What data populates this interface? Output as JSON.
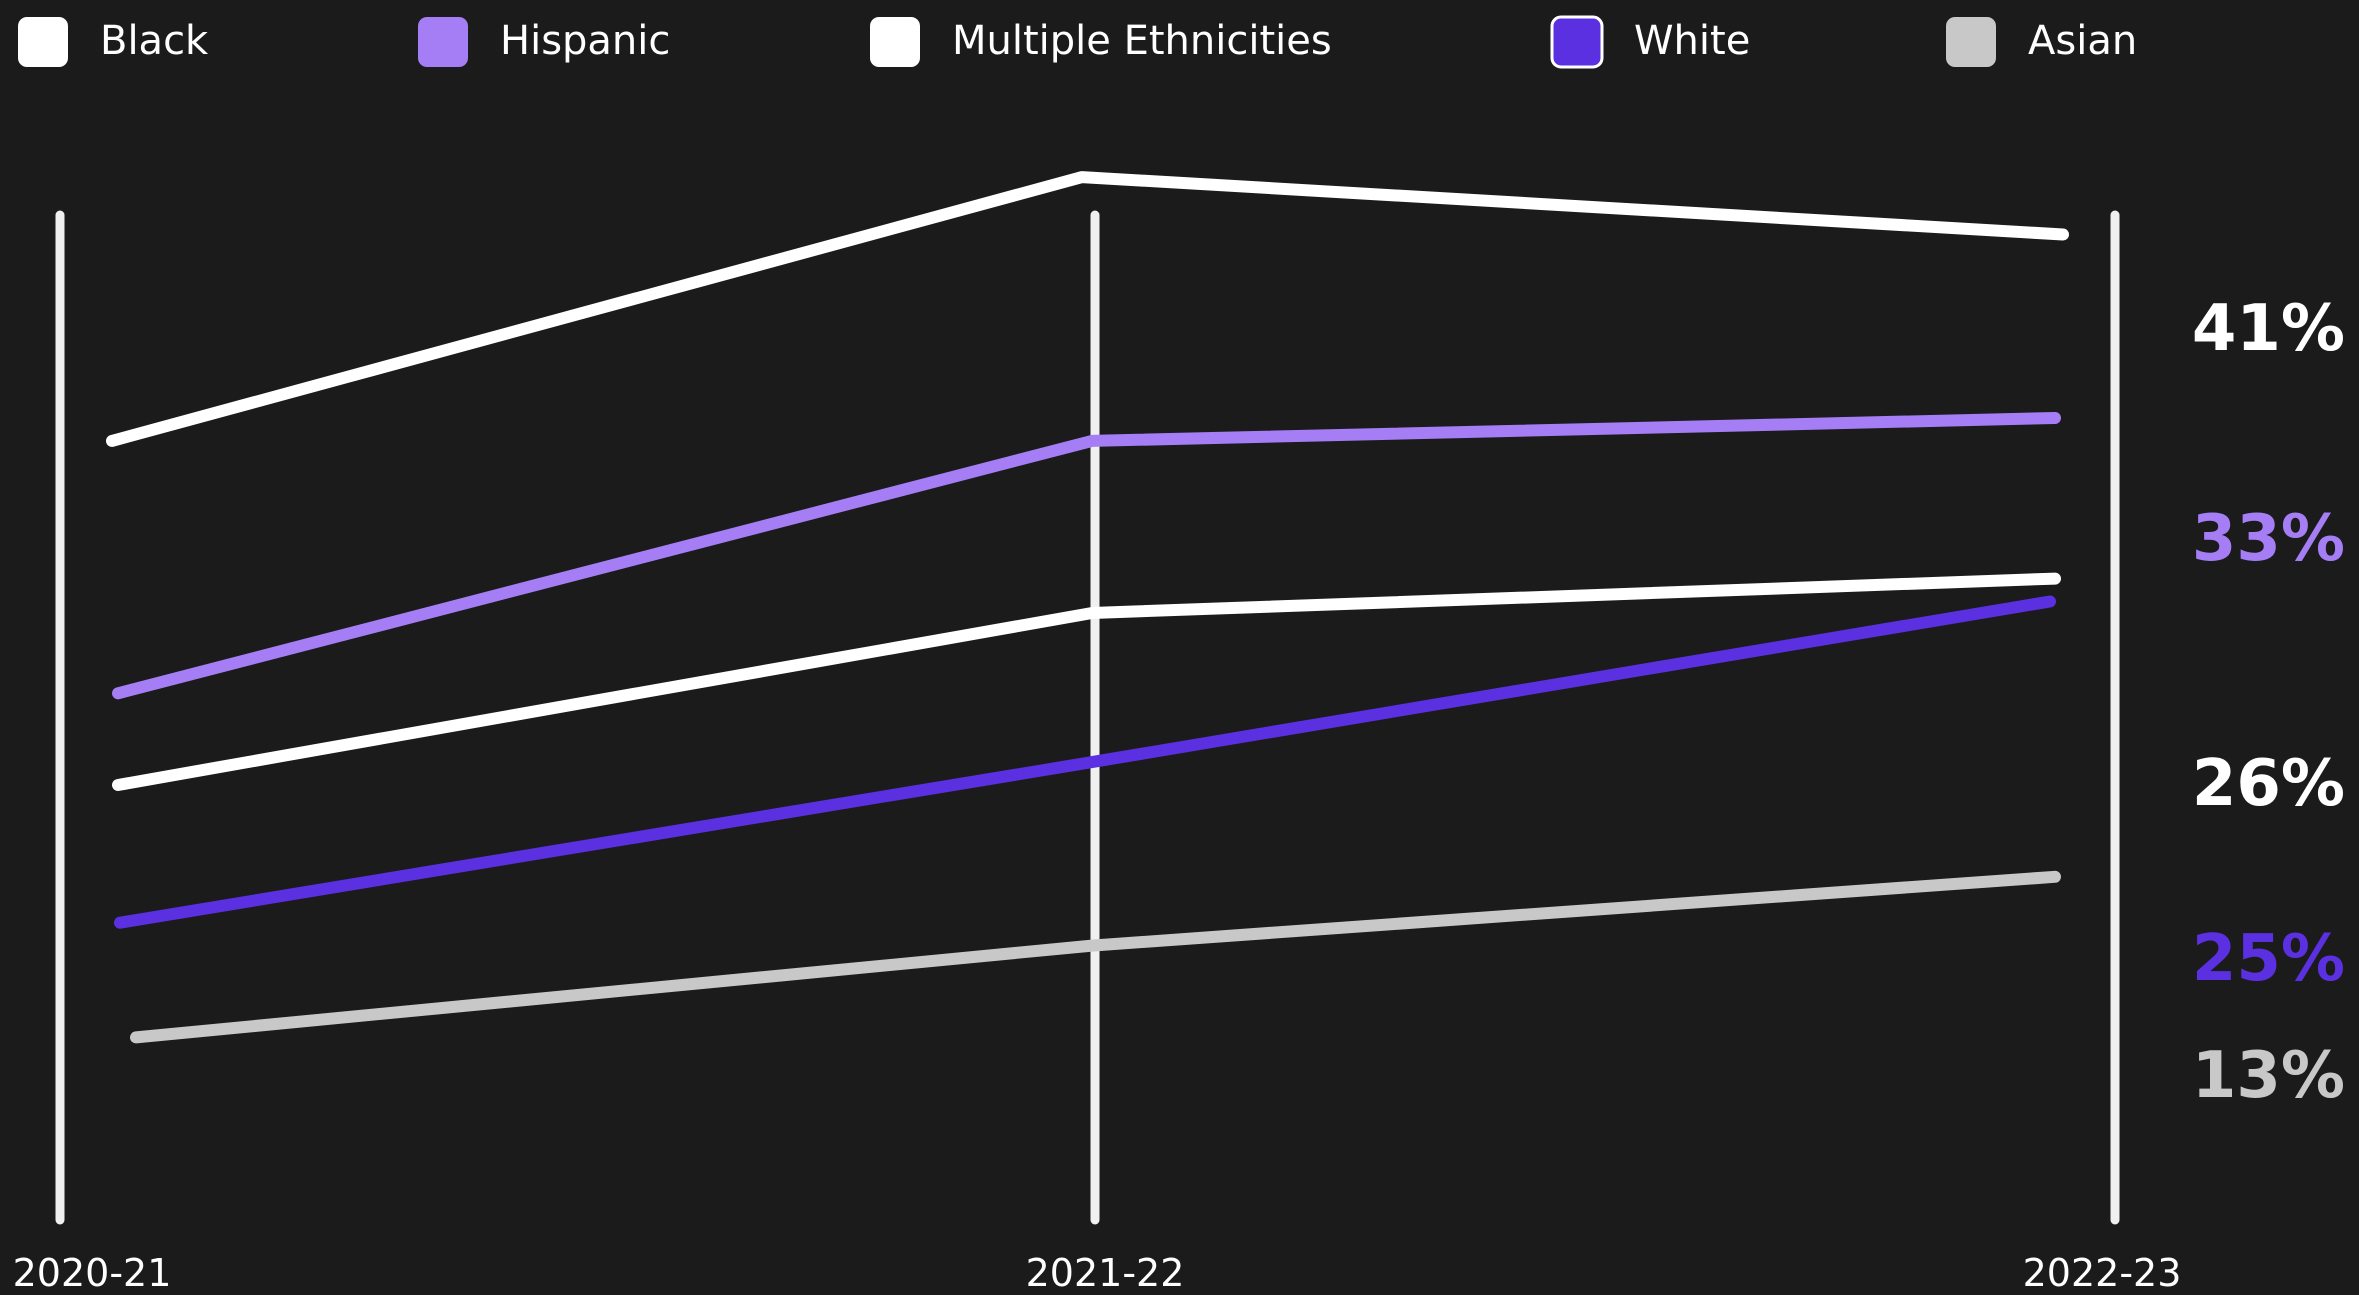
{
  "chart_data": {
    "type": "line",
    "title": "",
    "xlabel": "",
    "ylabel": "",
    "x": [
      "2020-21",
      "2021-22",
      "2022-23"
    ],
    "series": [
      {
        "name": "Black",
        "color": "#ffffff",
        "values": [
          32,
          43.5,
          41
        ],
        "end_label": "41%"
      },
      {
        "name": "Hispanic",
        "color": "#a57ef5",
        "values": [
          21,
          32,
          33
        ],
        "end_label": "33%"
      },
      {
        "name": "Multiple Ethnicities",
        "color": "#ffffff",
        "values": [
          17,
          24.5,
          26
        ],
        "end_label": "26%"
      },
      {
        "name": "White",
        "color": "#5a30e0",
        "values": [
          11,
          18,
          25
        ],
        "end_label": "25%"
      },
      {
        "name": "Asian",
        "color": "#c8c8c8",
        "values": [
          6,
          10,
          13
        ],
        "end_label": "13%"
      }
    ],
    "legend_position": "top",
    "grid": false,
    "background": "#1b1b1c"
  }
}
